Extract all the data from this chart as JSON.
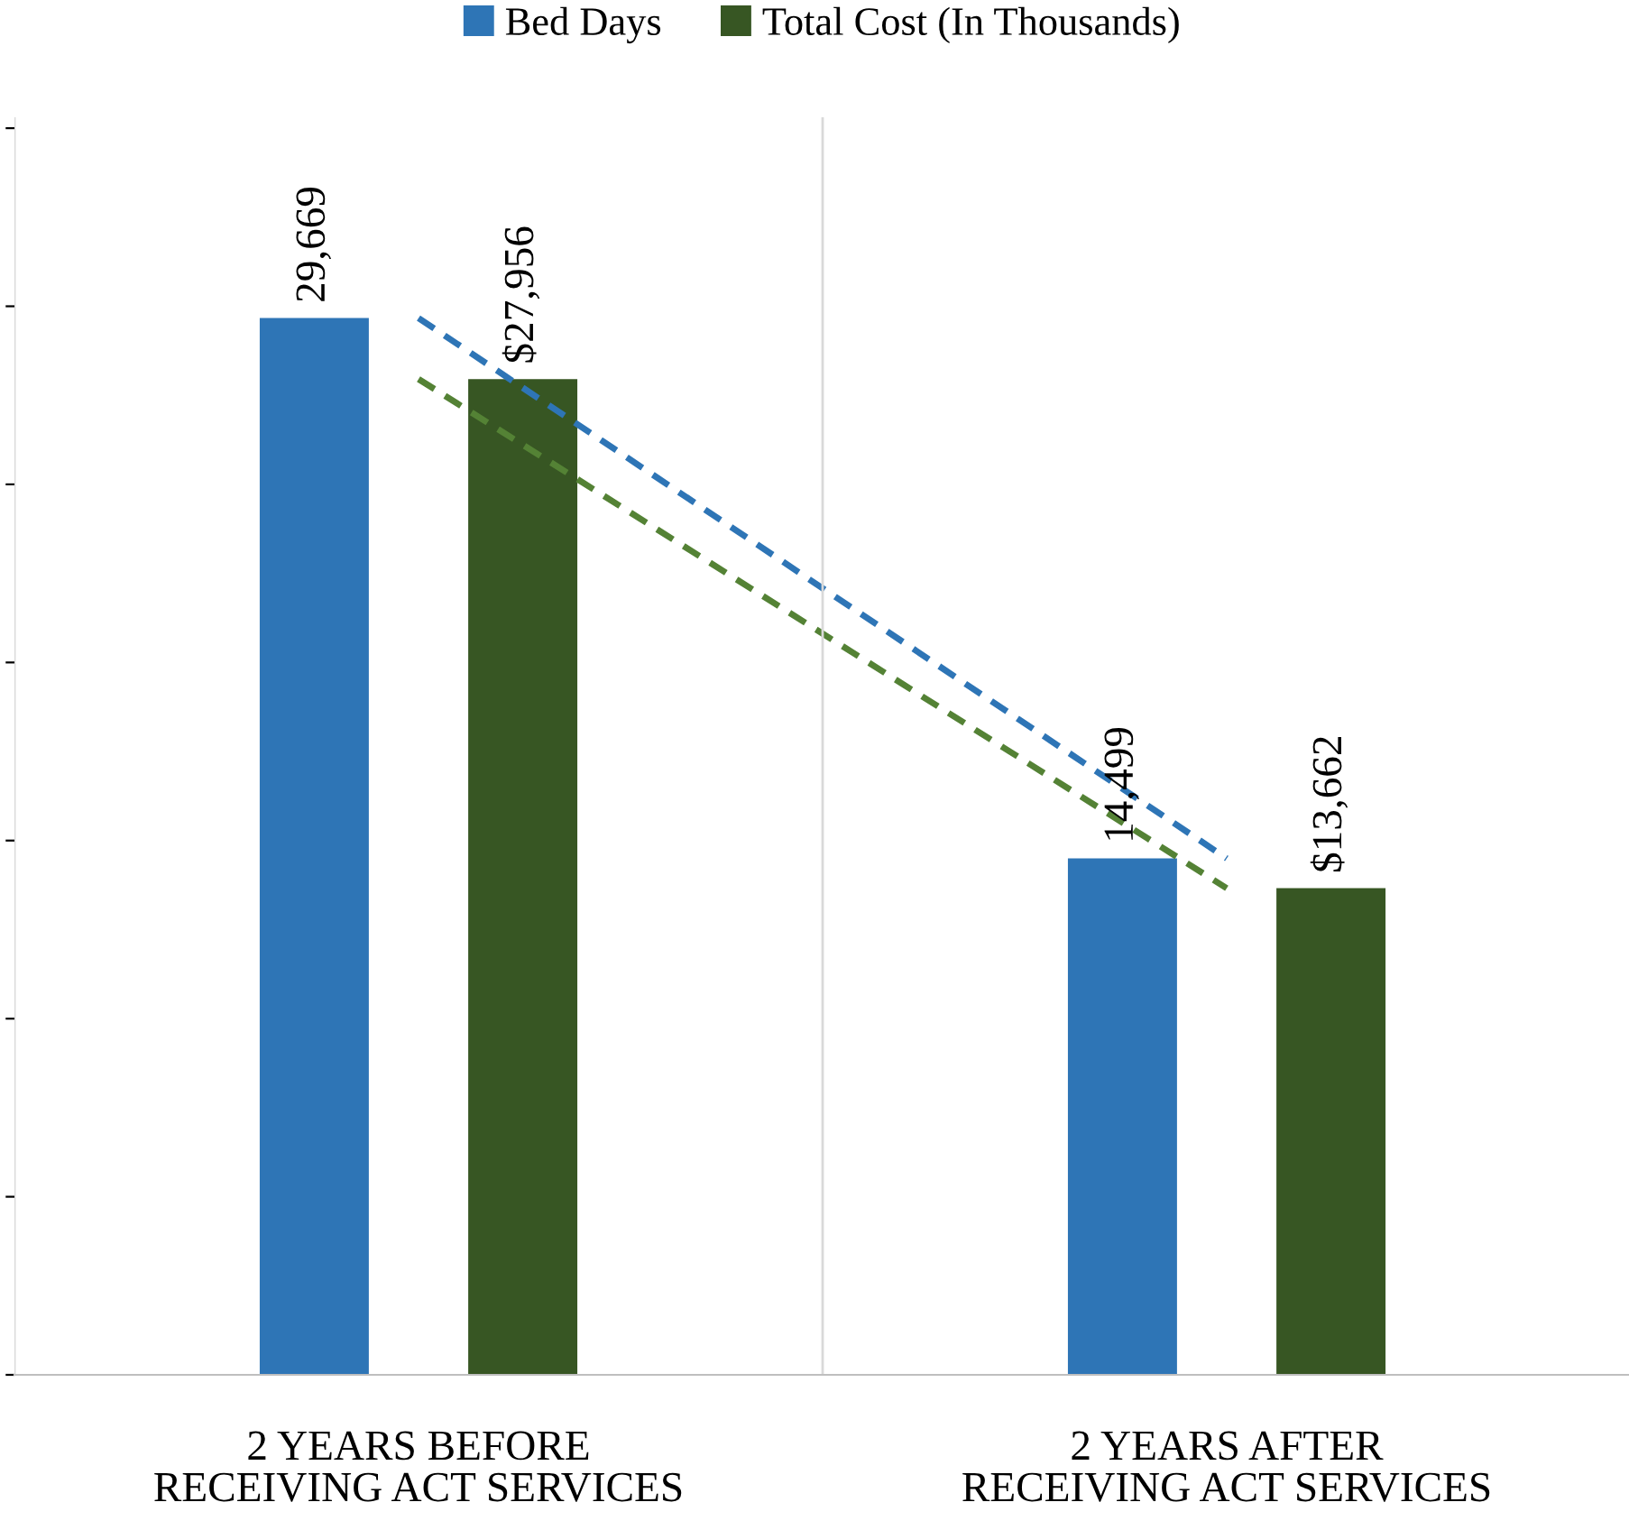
{
  "chart_data": {
    "type": "bar",
    "categories": [
      "2 YEARS BEFORE RECEIVING ACT SERVICES",
      "2 YEARS AFTER RECEIVING ACT SERVICES"
    ],
    "series": [
      {
        "name": "Bed Days",
        "color": "#2e75b6",
        "values": [
          29669,
          14499
        ],
        "value_labels": [
          "29,669",
          "14,499"
        ]
      },
      {
        "name": "Total Cost (In Thousands)",
        "color": "#375623",
        "values": [
          27956,
          13662
        ],
        "value_labels": [
          "$27,956",
          "$13,662"
        ]
      },
      {
        "type": "line",
        "color": "#2e75b6",
        "values": [
          29669,
          14499
        ],
        "line_style": "dashed"
      },
      {
        "type": "line",
        "color": "#548235",
        "values": [
          27956,
          13662
        ],
        "line_style": "dashed"
      }
    ],
    "relative": false,
    "grid": "x",
    "legend": "top"
  }
}
